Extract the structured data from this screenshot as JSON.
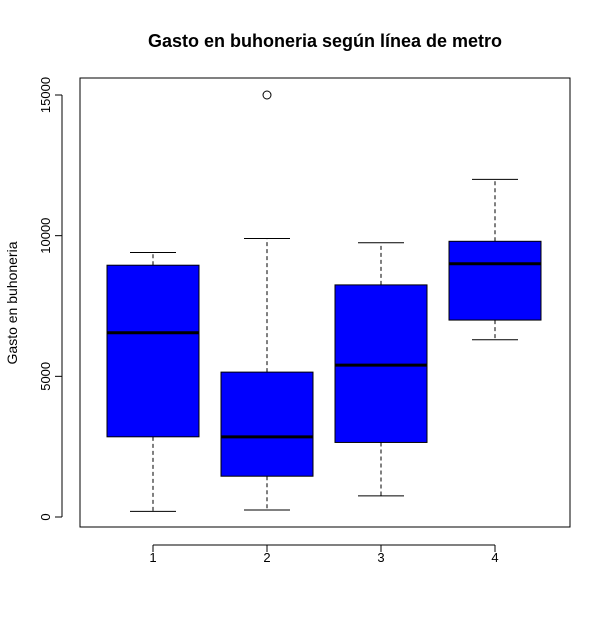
{
  "chart_data": {
    "type": "boxplot",
    "title": "Gasto en buhoneria según línea de metro",
    "xlabel": "",
    "ylabel": "Gasto en buhoneria",
    "ylim": [
      -300,
      15500
    ],
    "y_ticks": [
      0,
      5000,
      10000,
      15000
    ],
    "y_tick_labels": [
      "0",
      "5000",
      "10000",
      "15000"
    ],
    "box_color": "#0000ff",
    "categories": [
      "1",
      "2",
      "3",
      "4"
    ],
    "boxes": [
      {
        "category": "1",
        "whisker_low": 200,
        "q1": 2850,
        "median": 6550,
        "q3": 8950,
        "whisker_high": 9400,
        "outliers": []
      },
      {
        "category": "2",
        "whisker_low": 250,
        "q1": 1450,
        "median": 2850,
        "q3": 5150,
        "whisker_high": 9900,
        "outliers": [
          15000
        ]
      },
      {
        "category": "3",
        "whisker_low": 750,
        "q1": 2650,
        "median": 5400,
        "q3": 8250,
        "whisker_high": 9750,
        "outliers": []
      },
      {
        "category": "4",
        "whisker_low": 6300,
        "q1": 7000,
        "median": 9000,
        "q3": 9800,
        "whisker_high": 12000,
        "outliers": []
      }
    ]
  }
}
